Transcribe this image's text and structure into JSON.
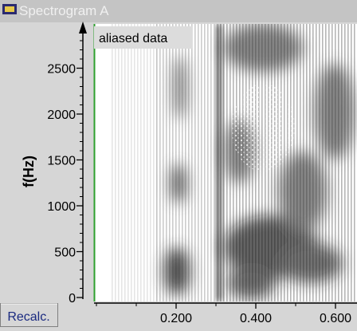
{
  "window": {
    "title": "Spectrogram A",
    "button": "Recalc."
  },
  "plot": {
    "annotation": "aliased data",
    "y_axis": {
      "label": "f(Hz)",
      "ticks": [
        0,
        500,
        1000,
        1500,
        2000,
        2500
      ]
    },
    "x_axis": {
      "ticks": [
        "0.200",
        "0.400",
        "0.600"
      ]
    }
  }
}
